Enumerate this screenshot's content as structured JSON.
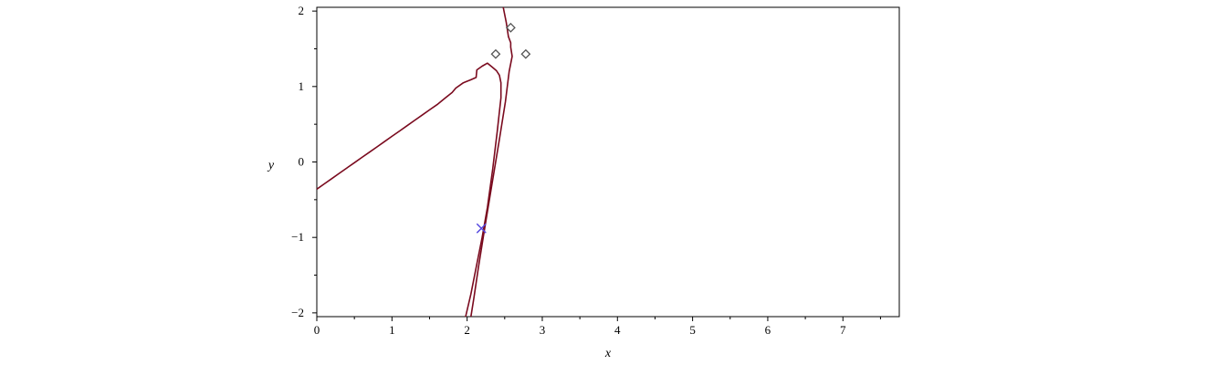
{
  "chart_data": {
    "type": "line",
    "title": "",
    "xlabel": "x",
    "ylabel": "y",
    "xlim": [
      0,
      7.75
    ],
    "ylim": [
      -2.05,
      2.05
    ],
    "x_ticks": [
      {
        "value": 0,
        "label": "0"
      },
      {
        "value": 1,
        "label": "1"
      },
      {
        "value": 2,
        "label": "2"
      },
      {
        "value": 3,
        "label": "3"
      },
      {
        "value": 4,
        "label": "4"
      },
      {
        "value": 5,
        "label": "5"
      },
      {
        "value": 6,
        "label": "6"
      },
      {
        "value": 7,
        "label": "7"
      }
    ],
    "x_minor_ticks": [
      0.5,
      1.5,
      2.5,
      3.5,
      4.5,
      5.5,
      6.5,
      7.5
    ],
    "y_ticks": [
      {
        "value": 2,
        "label": "2"
      },
      {
        "value": 1,
        "label": "1"
      },
      {
        "value": 0,
        "label": "0"
      },
      {
        "value": -1,
        "label": "−1"
      },
      {
        "value": -2,
        "label": "−2"
      }
    ],
    "y_minor_ticks": [
      1.5,
      0.5,
      -0.5,
      -1.5
    ],
    "grid": false,
    "colors": {
      "curve": "#7a0a1e",
      "diamond_markers": "#555555",
      "cross_marker": "#5548e0"
    },
    "series": [
      {
        "points": [
          [
            0.0,
            -0.36
          ],
          [
            0.1,
            -0.29
          ],
          [
            0.2,
            -0.22
          ],
          [
            0.3,
            -0.15
          ],
          [
            0.4,
            -0.08
          ],
          [
            0.5,
            -0.01
          ],
          [
            0.6,
            0.06
          ],
          [
            0.7,
            0.13
          ],
          [
            0.8,
            0.2
          ],
          [
            0.9,
            0.27
          ],
          [
            1.0,
            0.34
          ],
          [
            1.1,
            0.41
          ],
          [
            1.2,
            0.48
          ],
          [
            1.3,
            0.55
          ],
          [
            1.4,
            0.62
          ],
          [
            1.5,
            0.69
          ],
          [
            1.6,
            0.76
          ],
          [
            1.7,
            0.84
          ],
          [
            1.8,
            0.92
          ],
          [
            1.85,
            0.98
          ],
          [
            1.95,
            1.05
          ],
          [
            2.05,
            1.09
          ],
          [
            2.12,
            1.12
          ],
          [
            2.13,
            1.22
          ],
          [
            2.2,
            1.27
          ],
          [
            2.27,
            1.31
          ],
          [
            2.33,
            1.26
          ],
          [
            2.39,
            1.21
          ],
          [
            2.43,
            1.15
          ],
          [
            2.45,
            1.05
          ],
          [
            2.45,
            0.85
          ],
          [
            2.4,
            0.4
          ],
          [
            2.34,
            -0.1
          ],
          [
            2.27,
            -0.6
          ],
          [
            2.2,
            -1.0
          ],
          [
            2.12,
            -1.4
          ],
          [
            2.05,
            -1.75
          ],
          [
            1.98,
            -2.05
          ]
        ]
      },
      {
        "points": [
          [
            2.48,
            2.05
          ],
          [
            2.52,
            1.85
          ],
          [
            2.55,
            1.66
          ],
          [
            2.58,
            1.58
          ],
          [
            2.58,
            1.52
          ],
          [
            2.6,
            1.4
          ],
          [
            2.56,
            1.2
          ],
          [
            2.51,
            0.8
          ],
          [
            2.43,
            0.3
          ],
          [
            2.33,
            -0.3
          ],
          [
            2.23,
            -0.9
          ],
          [
            2.15,
            -1.4
          ],
          [
            2.09,
            -1.8
          ],
          [
            2.05,
            -2.05
          ]
        ]
      }
    ],
    "diamond_points": [
      [
        2.58,
        1.78
      ],
      [
        2.38,
        1.43
      ],
      [
        2.78,
        1.43
      ]
    ],
    "cross_points": [
      [
        2.19,
        -0.88
      ]
    ]
  }
}
